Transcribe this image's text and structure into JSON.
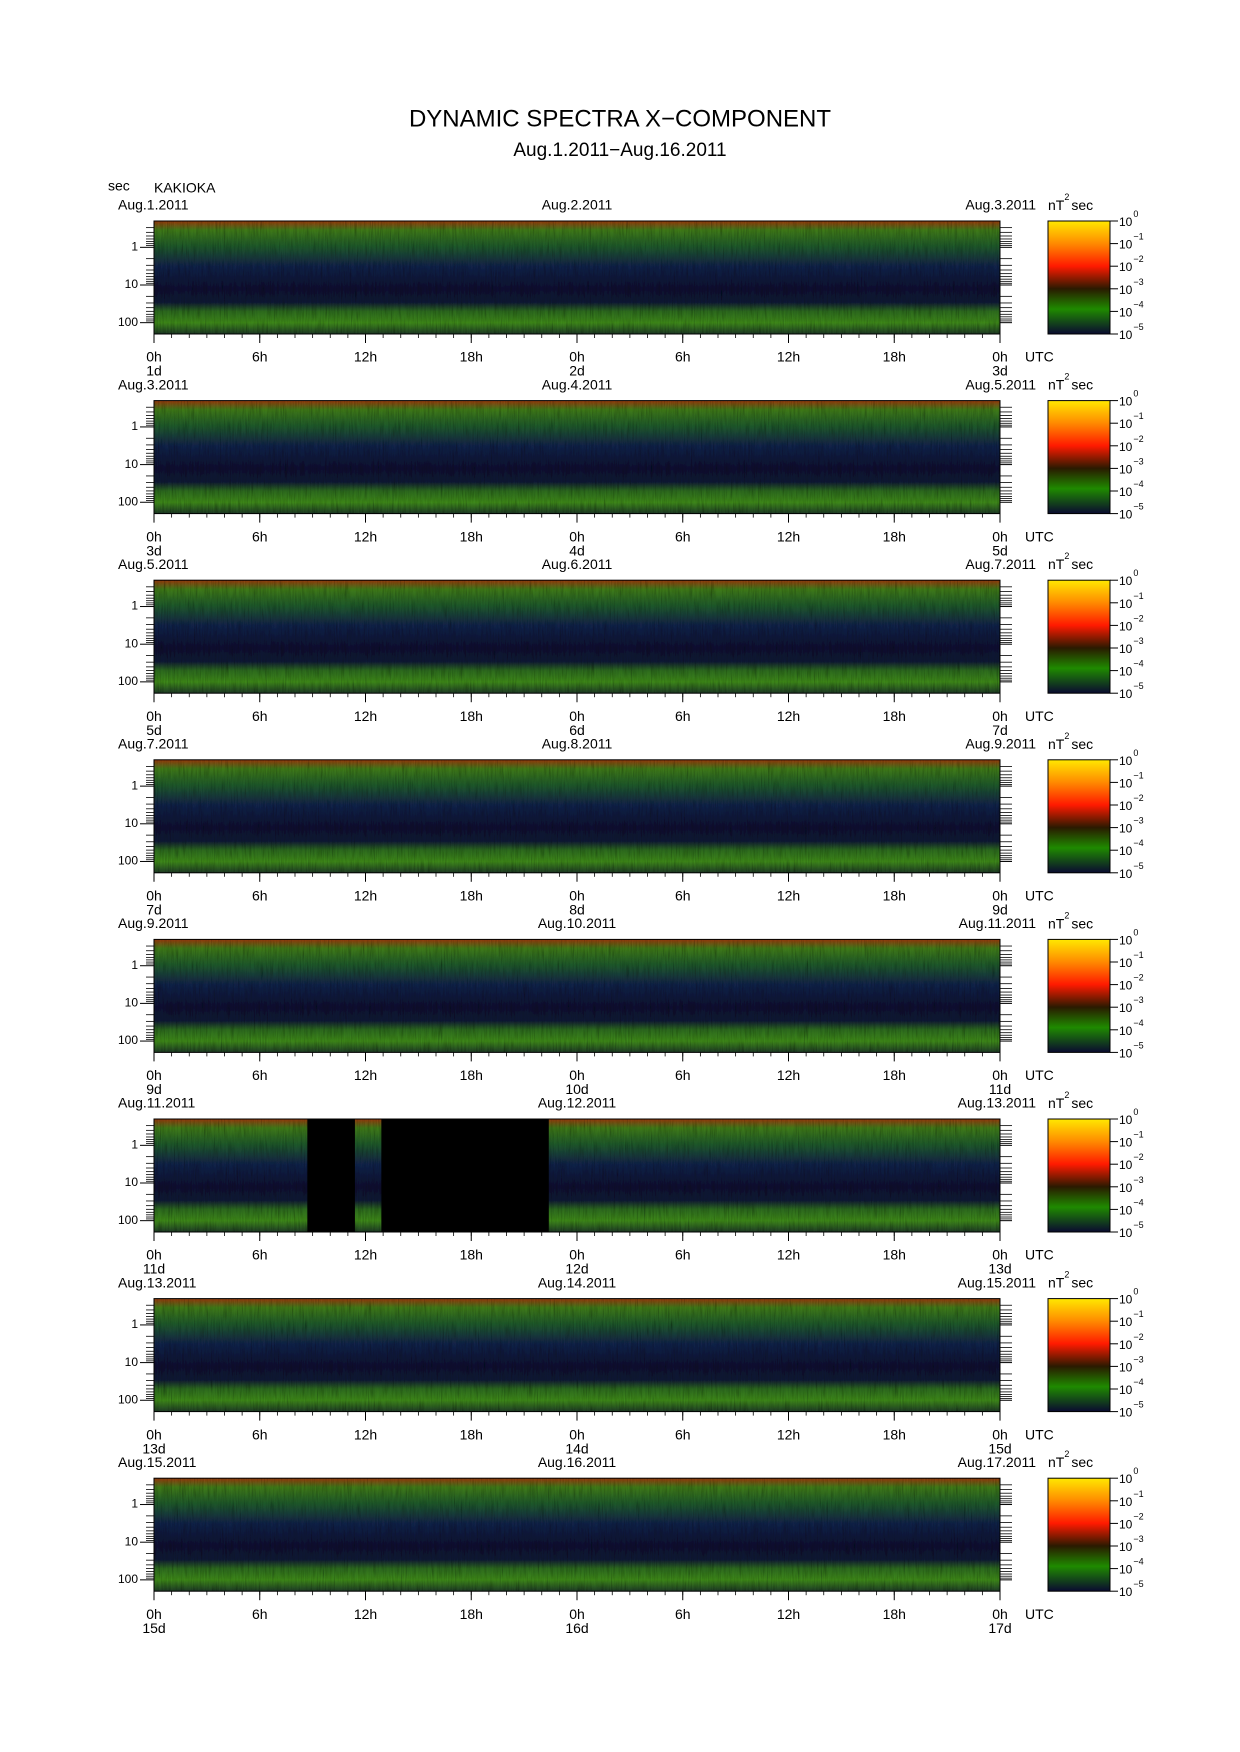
{
  "title": "DYNAMIC SPECTRA X−COMPONENT",
  "subtitle": "Aug.1.2011−Aug.16.2011",
  "y_unit": "sec",
  "station": "KAKIOKA",
  "x_unit": "UTC",
  "colorbar": {
    "unit": {
      "base": "nT",
      "exp": "2",
      "tail": "sec"
    },
    "lim": [
      -5,
      0
    ],
    "ticks": [
      {
        "value": 0,
        "label": "10",
        "exp": "0"
      },
      {
        "value": -1,
        "label": "10",
        "exp": "−1"
      },
      {
        "value": -2,
        "label": "10",
        "exp": "−2"
      },
      {
        "value": -3,
        "label": "10",
        "exp": "−3"
      },
      {
        "value": -4,
        "label": "10",
        "exp": "−4"
      },
      {
        "value": -5,
        "label": "10",
        "exp": "−5"
      }
    ]
  },
  "xlim": [
    0,
    48
  ],
  "xticks": [
    {
      "value": 0,
      "label": "0h"
    },
    {
      "value": 6,
      "label": "6h"
    },
    {
      "value": 12,
      "label": "12h"
    },
    {
      "value": 18,
      "label": "18h"
    },
    {
      "value": 24,
      "label": "0h"
    },
    {
      "value": 30,
      "label": "6h"
    },
    {
      "value": 36,
      "label": "12h"
    },
    {
      "value": 42,
      "label": "18h"
    },
    {
      "value": 48,
      "label": "0h"
    }
  ],
  "ylim": [
    0.2,
    200
  ],
  "yticks": [
    1,
    10,
    100
  ],
  "y_log": true,
  "chart_data": [
    {
      "type": "spectrogram",
      "dates": [
        "Aug.1.2011",
        "Aug.2.2011",
        "Aug.3.2011"
      ],
      "days": [
        "1d",
        "2d",
        "3d"
      ]
    },
    {
      "type": "spectrogram",
      "dates": [
        "Aug.3.2011",
        "Aug.4.2011",
        "Aug.5.2011"
      ],
      "days": [
        "3d",
        "4d",
        "5d"
      ]
    },
    {
      "type": "spectrogram",
      "dates": [
        "Aug.5.2011",
        "Aug.6.2011",
        "Aug.7.2011"
      ],
      "days": [
        "5d",
        "6d",
        "7d"
      ]
    },
    {
      "type": "spectrogram",
      "dates": [
        "Aug.7.2011",
        "Aug.8.2011",
        "Aug.9.2011"
      ],
      "days": [
        "7d",
        "8d",
        "9d"
      ]
    },
    {
      "type": "spectrogram",
      "dates": [
        "Aug.9.2011",
        "Aug.10.2011",
        "Aug.11.2011"
      ],
      "days": [
        "9d",
        "10d",
        "11d"
      ]
    },
    {
      "type": "spectrogram",
      "dates": [
        "Aug.11.2011",
        "Aug.12.2011",
        "Aug.13.2011"
      ],
      "days": [
        "11d",
        "12d",
        "13d"
      ],
      "gaps": [
        [
          8.7,
          11.4
        ],
        [
          12.9,
          22.4
        ]
      ]
    },
    {
      "type": "spectrogram",
      "dates": [
        "Aug.13.2011",
        "Aug.14.2011",
        "Aug.15.2011"
      ],
      "days": [
        "13d",
        "14d",
        "15d"
      ]
    },
    {
      "type": "spectrogram",
      "dates": [
        "Aug.15.2011",
        "Aug.16.2011",
        "Aug.17.2011"
      ],
      "days": [
        "15d",
        "16d",
        "17d"
      ]
    }
  ]
}
